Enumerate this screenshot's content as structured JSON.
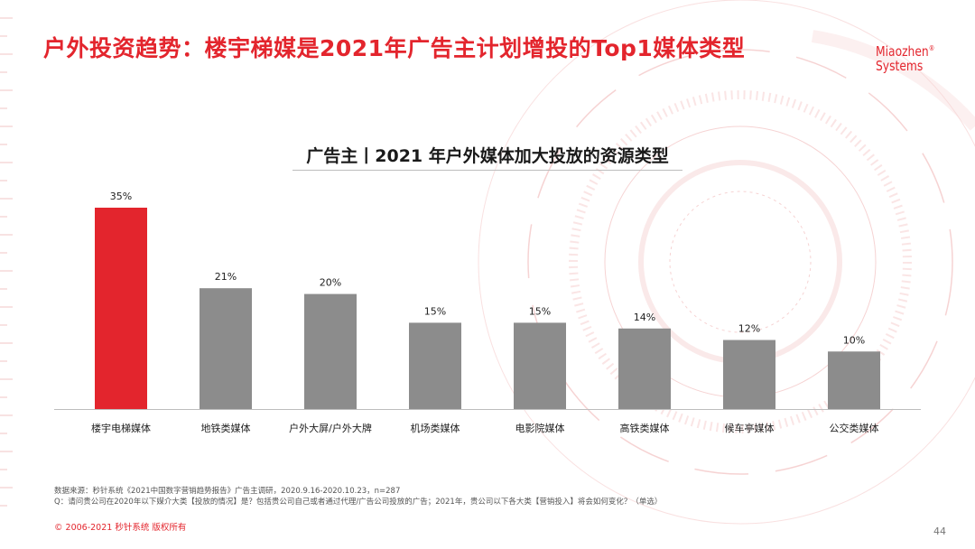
{
  "header": {
    "title": "户外投资趋势：楼宇梯媒是2021年广告主计划增投的Top1媒体类型",
    "logo_line1": "Miaozhen",
    "logo_reg": "®",
    "logo_line2": "Systems"
  },
  "colors": {
    "accent": "#e3252d",
    "bar_highlight": "#e3252d",
    "bar_default": "#8c8c8c"
  },
  "chart_data": {
    "type": "bar",
    "title": "广告主丨2021 年户外媒体加大投放的资源类型",
    "categories": [
      "楼宇电梯媒体",
      "地铁类媒体",
      "户外大屏/户外大牌",
      "机场类媒体",
      "电影院媒体",
      "高铁类媒体",
      "候车亭媒体",
      "公交类媒体"
    ],
    "values": [
      35,
      21,
      20,
      15,
      15,
      14,
      12,
      10
    ],
    "value_labels": [
      "35%",
      "21%",
      "20%",
      "15%",
      "15%",
      "14%",
      "12%",
      "10%"
    ],
    "highlight_index": 0,
    "ylim": [
      0,
      35
    ],
    "grid": false,
    "xlabel": "",
    "ylabel": ""
  },
  "footnote": {
    "line1": "数据来源：秒针系统《2021中国数字营销趋势报告》广告主调研，2020.9.16-2020.10.23，n=287",
    "line2": "Q：请问贵公司在2020年以下媒介大类【投放的情况】是？包括贵公司自己或者通过代理/广告公司投放的广告；2021年，贵公司以下各大类【营销投入】将会如何变化？（单选）"
  },
  "copyright": "© 2006-2021 秒针系统 版权所有",
  "page_number": "44"
}
